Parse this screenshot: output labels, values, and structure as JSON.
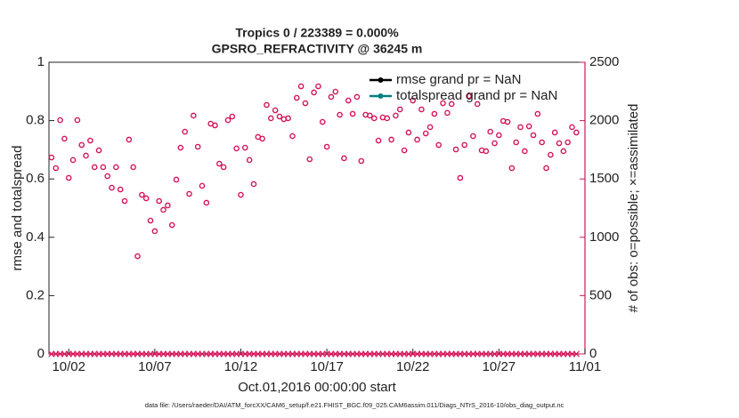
{
  "chart_data": {
    "type": "scatter",
    "title": "Tropics 0 / 223389 = 0.000%",
    "subtitle": "GPSRO_REFRACTIVITY @ 36245 m",
    "ylabel": "rmse and totalspread",
    "y2label": "# of obs: o=possible; ×=assimilated",
    "xlabel": "Oct.01,2016 00:00:00 start",
    "footnote": "data file: /Users/raeder/DAI/ATM_forcXX/CAM6_setup/f.e21.FHIST_BGC.f09_025.CAM6assim.011/Diags_NTrS_2016-10/obs_diag_output.nc",
    "legend": [
      {
        "label": "rmse grand pr = NaN",
        "color": "#000000"
      },
      {
        "label": "totalspread grand pr = NaN",
        "color": "#008080"
      }
    ],
    "xlim": [
      -0.15,
      31
    ],
    "xticks": [
      {
        "value": 1,
        "label": "10/02"
      },
      {
        "value": 6,
        "label": "10/07"
      },
      {
        "value": 11,
        "label": "10/12"
      },
      {
        "value": 16,
        "label": "10/17"
      },
      {
        "value": 21,
        "label": "10/22"
      },
      {
        "value": 26,
        "label": "10/27"
      },
      {
        "value": 31,
        "label": "11/01"
      }
    ],
    "ylim": [
      0,
      1
    ],
    "yticks": [
      0,
      0.2,
      0.4,
      0.6,
      0.8,
      1
    ],
    "y2lim": [
      0,
      2500
    ],
    "y2ticks": [
      0,
      500,
      1000,
      1500,
      2000,
      2500
    ],
    "axis_color": "#d4145a",
    "x": [
      0,
      0.25,
      0.5,
      0.75,
      1,
      1.25,
      1.5,
      1.75,
      2,
      2.25,
      2.5,
      2.75,
      3,
      3.25,
      3.5,
      3.75,
      4,
      4.25,
      4.5,
      4.75,
      5,
      5.25,
      5.5,
      5.75,
      6,
      6.25,
      6.5,
      6.75,
      7,
      7.25,
      7.5,
      7.75,
      8,
      8.25,
      8.5,
      8.75,
      9,
      9.25,
      9.5,
      9.75,
      10,
      10.25,
      10.5,
      10.75,
      11,
      11.25,
      11.5,
      11.75,
      12,
      12.25,
      12.5,
      12.75,
      13,
      13.25,
      13.5,
      13.75,
      14,
      14.25,
      14.5,
      14.75,
      15,
      15.25,
      15.5,
      15.75,
      16,
      16.25,
      16.5,
      16.75,
      17,
      17.25,
      17.5,
      17.75,
      18,
      18.25,
      18.5,
      18.75,
      19,
      19.25,
      19.5,
      19.75,
      20,
      20.25,
      20.5,
      20.75,
      21,
      21.25,
      21.5,
      21.75,
      22,
      22.25,
      22.5,
      22.75,
      23,
      23.25,
      23.5,
      23.75,
      24,
      24.25,
      24.5,
      24.75,
      25,
      25.25,
      25.5,
      25.75,
      26,
      26.25,
      26.5,
      26.75,
      27,
      27.25,
      27.5,
      27.75,
      28,
      28.25,
      28.5,
      28.75,
      29,
      29.25,
      29.5,
      29.75,
      30,
      30.25,
      30.5
    ],
    "obs_possible": {
      "axis": "y2",
      "color": "#d4145a",
      "values": [
        1684,
        1593,
        2004,
        1845,
        1509,
        1662,
        2004,
        1791,
        1700,
        1829,
        1601,
        1745,
        1601,
        1524,
        1425,
        1601,
        1410,
        1311,
        1837,
        1601,
        838,
        1364,
        1334,
        1143,
        1052,
        1311,
        1235,
        1273,
        1105,
        1494,
        1768,
        1905,
        1372,
        2043,
        1776,
        1441,
        1296,
        1974,
        1959,
        1631,
        1601,
        2004,
        2035,
        1761,
        1364,
        1768,
        1662,
        1456,
        1860,
        1845,
        2134,
        2020,
        2088,
        2035,
        2012,
        2020,
        1867,
        2195,
        2294,
        2149,
        1669,
        2241,
        2294,
        1989,
        1776,
        2203,
        2248,
        2050,
        1677,
        2172,
        2058,
        2203,
        1654,
        2050,
        2043,
        2020,
        1829,
        2027,
        2020,
        1837,
        2043,
        2096,
        1745,
        1898,
        2172,
        1837,
        2096,
        1890,
        1944,
        2058,
        1791,
        2149,
        2066,
        2142,
        1753,
        1509,
        1791,
        2210,
        1867,
        2142,
        1745,
        1738,
        1905,
        1806,
        1875,
        1997,
        1989,
        1593,
        1814,
        1944,
        1738,
        1951,
        1875,
        2058,
        1814,
        1593,
        1707,
        1898,
        1806,
        1738,
        1814,
        1944,
        1898
      ]
    },
    "obs_assimilated": {
      "axis": "y2",
      "color": "#d4145a",
      "values": [
        0,
        0,
        0,
        0,
        0,
        0,
        0,
        0,
        0,
        0,
        0,
        0,
        0,
        0,
        0,
        0,
        0,
        0,
        0,
        0,
        0,
        0,
        0,
        0,
        0,
        0,
        0,
        0,
        0,
        0,
        0,
        0,
        0,
        0,
        0,
        0,
        0,
        0,
        0,
        0,
        0,
        0,
        0,
        0,
        0,
        0,
        0,
        0,
        0,
        0,
        0,
        0,
        0,
        0,
        0,
        0,
        0,
        0,
        0,
        0,
        0,
        0,
        0,
        0,
        0,
        0,
        0,
        0,
        0,
        0,
        0,
        0,
        0,
        0,
        0,
        0,
        0,
        0,
        0,
        0,
        0,
        0,
        0,
        0,
        0,
        0,
        0,
        0,
        0,
        0,
        0,
        0,
        0,
        0,
        0,
        0,
        0,
        0,
        0,
        0,
        0,
        0,
        0,
        0,
        0,
        0,
        0,
        0,
        0,
        0,
        0,
        0,
        0,
        0,
        0,
        0,
        0,
        0,
        0,
        0,
        0,
        0,
        0
      ]
    }
  }
}
